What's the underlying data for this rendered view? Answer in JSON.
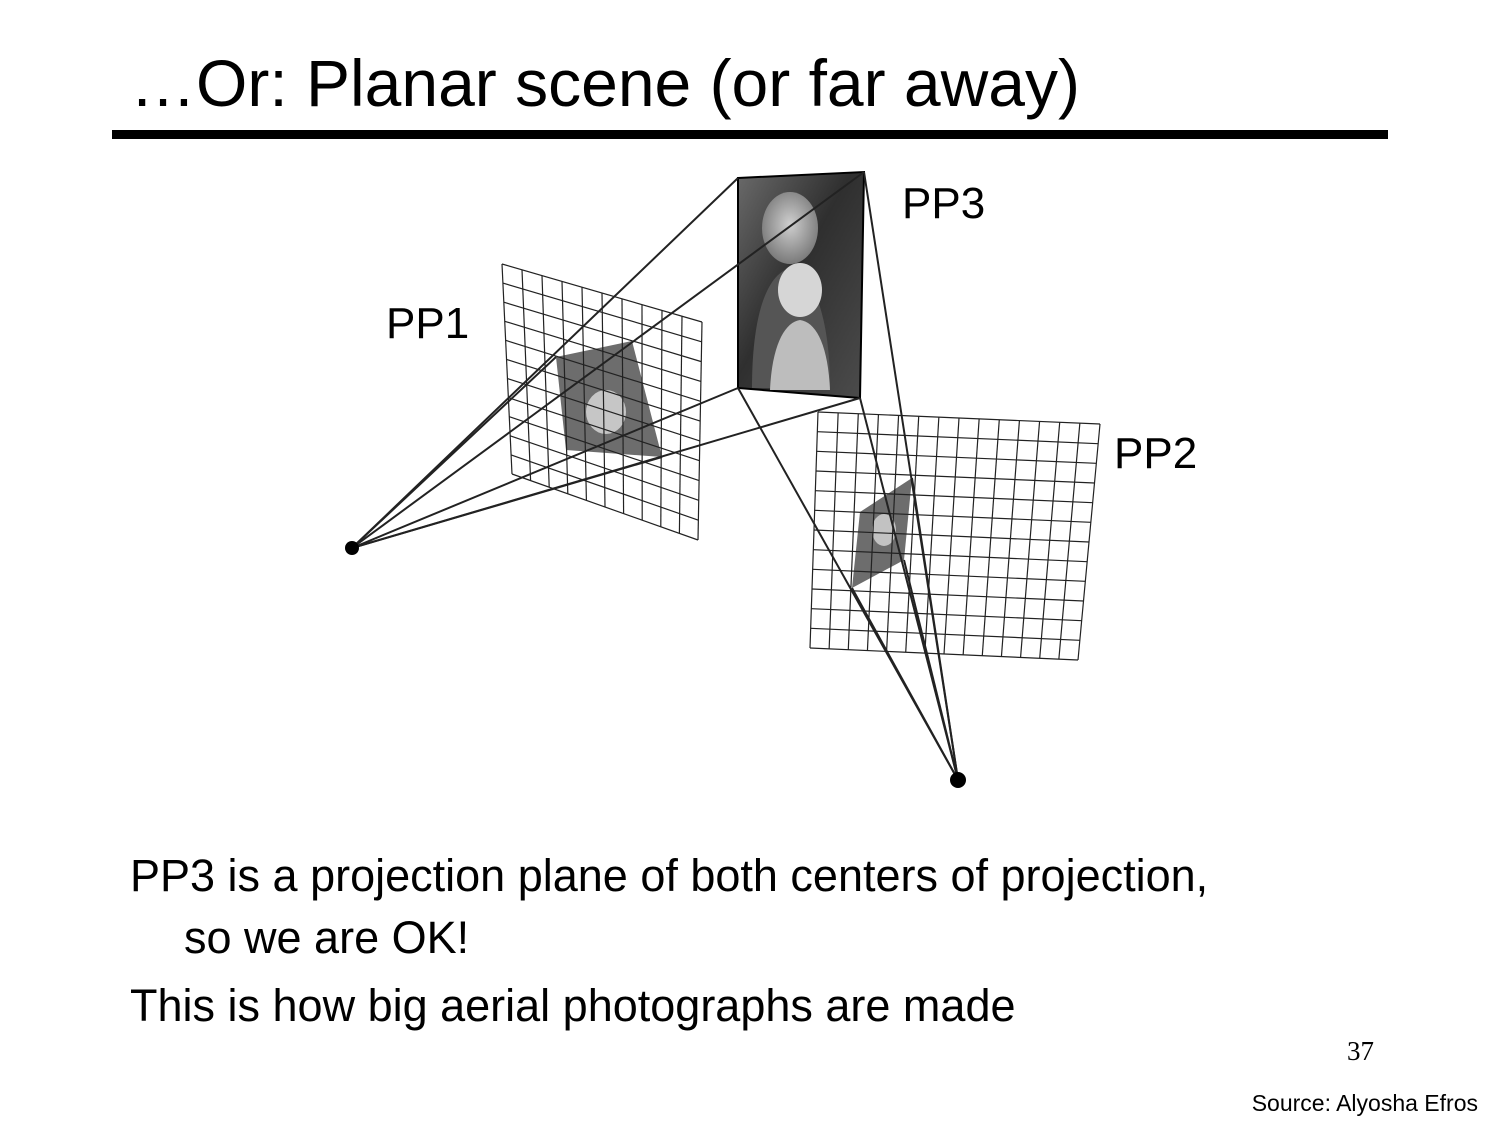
{
  "slide": {
    "title": "…Or: Planar scene (or far away)",
    "bullets": [
      {
        "text": "PP3 is a projection plane of both centers of projection,",
        "continuation": "so we are OK!"
      },
      {
        "text": "This is how big aerial photographs are made"
      }
    ],
    "slide_number": "37",
    "source": "Source: Alyosha Efros"
  },
  "diagram": {
    "labels": {
      "pp1": "PP1",
      "pp2": "PP2",
      "pp3": "PP3"
    },
    "colors": {
      "ink": "#000000",
      "photo_dark": "#3a3a3a",
      "photo_light": "#b0b0b0",
      "ray_faint": "#9a9a9a"
    }
  }
}
